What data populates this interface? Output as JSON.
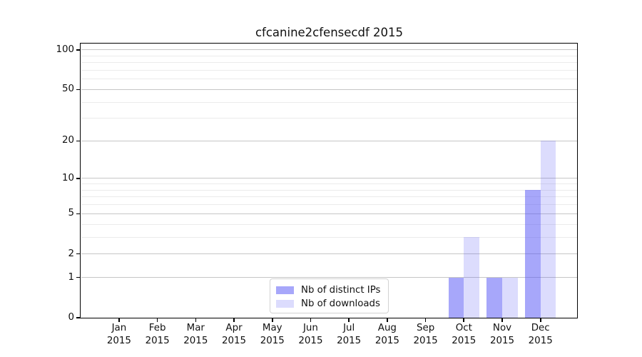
{
  "title": "cfcanine2cfensecdf 2015",
  "chart_data": {
    "type": "bar",
    "scale": "log1p",
    "title": "cfcanine2cfensecdf 2015",
    "categories": [
      "Jan 2015",
      "Feb 2015",
      "Mar 2015",
      "Apr 2015",
      "May 2015",
      "Jun 2015",
      "Jul 2015",
      "Aug 2015",
      "Sep 2015",
      "Oct 2015",
      "Nov 2015",
      "Dec 2015"
    ],
    "series": [
      {
        "name": "Nb of distinct IPs",
        "values": [
          0,
          0,
          0,
          0,
          0,
          0,
          0,
          0,
          0,
          1,
          1,
          8
        ],
        "color": "rgba(80,80,245,0.5)",
        "color_solid": "#a8a8f7"
      },
      {
        "name": "Nb of downloads",
        "values": [
          0,
          0,
          0,
          0,
          0,
          0,
          0,
          0,
          0,
          3,
          1,
          20
        ],
        "color": "rgba(80,80,245,0.2)",
        "color_solid": "#d9d9fb"
      }
    ],
    "y_major_ticks": [
      0,
      1,
      2,
      5,
      10,
      20,
      50,
      100
    ],
    "y_minor_ticks": [
      3,
      4,
      6,
      7,
      8,
      9,
      30,
      40,
      60,
      70,
      80,
      90
    ],
    "ylim": [
      0,
      112
    ],
    "xlabel": "",
    "ylabel": "",
    "grid": "horizontal",
    "legend_position": "lower center"
  },
  "colors": {
    "background": "#ffffff",
    "grid_major": "#c6c6c6",
    "grid_minor": "#ebebeb",
    "spine": "#000000",
    "text": "#111111",
    "legend_border": "#d2d2d2",
    "bar_dark": "rgba(80,80,245,0.5)",
    "bar_light": "rgba(80,80,245,0.2)"
  }
}
